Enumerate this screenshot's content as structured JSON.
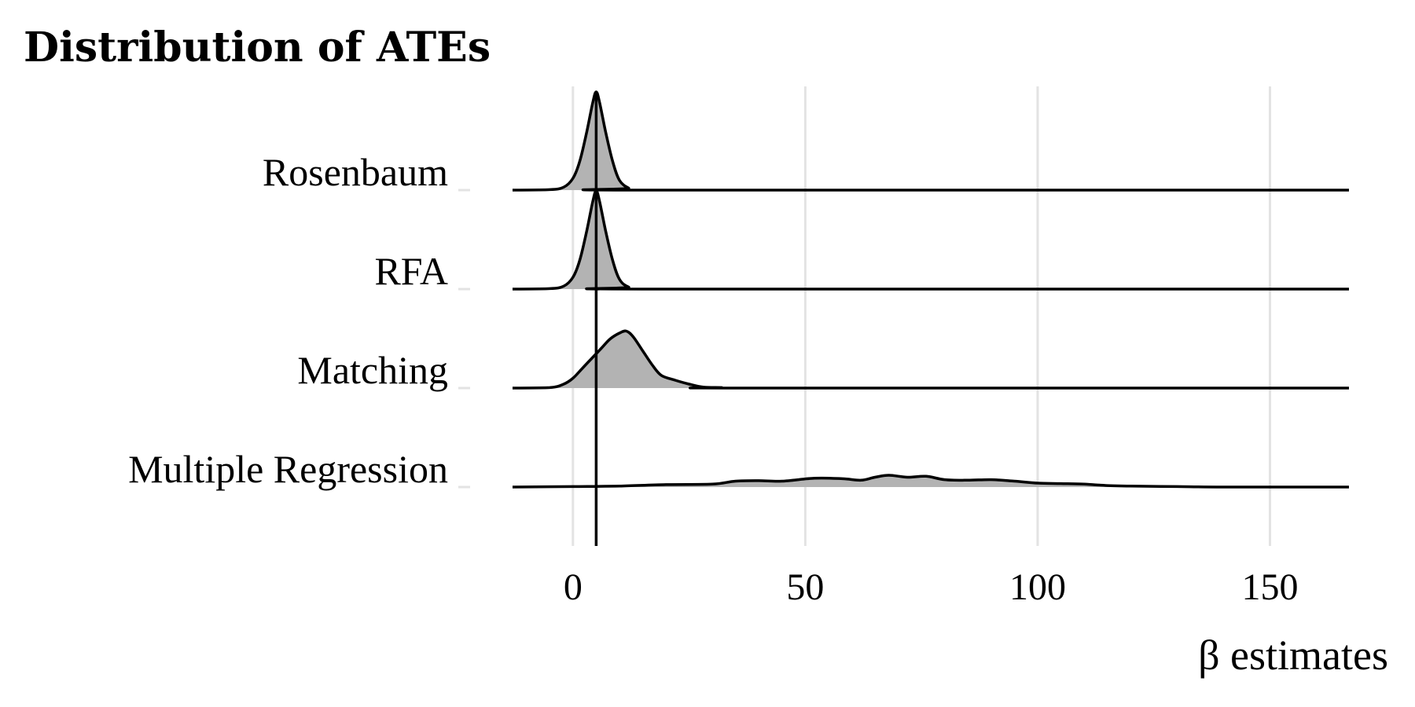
{
  "chart_data": {
    "type": "ridgeline",
    "title": "Distribution of ATEs",
    "xlabel": "β estimates",
    "ylabel": "",
    "xlim": [
      -13,
      167
    ],
    "x_ticks": [
      0,
      50,
      100,
      150
    ],
    "x_tick_labels": [
      "0",
      "50",
      "100",
      "150"
    ],
    "grid": "vertical major gridlines only",
    "legend": "none",
    "reference_line_x": 5,
    "fill_color": "#b3b3b3",
    "line_color": "#000000",
    "series": [
      {
        "name": "Rosenbaum",
        "points": [
          [
            -13,
            0
          ],
          [
            -5,
            0.005
          ],
          [
            -2,
            0.03
          ],
          [
            0,
            0.12
          ],
          [
            1.5,
            0.3
          ],
          [
            3,
            0.6
          ],
          [
            4.3,
            0.9
          ],
          [
            5,
            1.0
          ],
          [
            5.7,
            0.9
          ],
          [
            7,
            0.6
          ],
          [
            8.5,
            0.3
          ],
          [
            10,
            0.1
          ],
          [
            12,
            0.02
          ],
          [
            14,
            0
          ],
          [
            167,
            0
          ]
        ]
      },
      {
        "name": "RFA",
        "points": [
          [
            -13,
            0
          ],
          [
            -5,
            0.005
          ],
          [
            -2,
            0.03
          ],
          [
            0,
            0.12
          ],
          [
            1.5,
            0.3
          ],
          [
            3,
            0.6
          ],
          [
            4.3,
            0.9
          ],
          [
            5,
            1.0
          ],
          [
            5.7,
            0.9
          ],
          [
            7,
            0.6
          ],
          [
            8.5,
            0.3
          ],
          [
            10,
            0.1
          ],
          [
            12,
            0.02
          ],
          [
            15,
            0
          ],
          [
            167,
            0
          ]
        ]
      },
      {
        "name": "Matching",
        "points": [
          [
            -13,
            0
          ],
          [
            -5,
            0.005
          ],
          [
            -2,
            0.04
          ],
          [
            0,
            0.1
          ],
          [
            2,
            0.2
          ],
          [
            4,
            0.3
          ],
          [
            6,
            0.4
          ],
          [
            8,
            0.5
          ],
          [
            10,
            0.56
          ],
          [
            11.5,
            0.58
          ],
          [
            13,
            0.52
          ],
          [
            15,
            0.38
          ],
          [
            17,
            0.24
          ],
          [
            19,
            0.13
          ],
          [
            22,
            0.08
          ],
          [
            25,
            0.04
          ],
          [
            28,
            0.01
          ],
          [
            32,
            0.005
          ],
          [
            36,
            0
          ],
          [
            167,
            0
          ]
        ]
      },
      {
        "name": "Multiple Regression",
        "points": [
          [
            -13,
            0
          ],
          [
            0,
            0.005
          ],
          [
            10,
            0.01
          ],
          [
            20,
            0.025
          ],
          [
            30,
            0.03
          ],
          [
            35,
            0.06
          ],
          [
            40,
            0.065
          ],
          [
            45,
            0.06
          ],
          [
            52,
            0.09
          ],
          [
            58,
            0.085
          ],
          [
            62,
            0.07
          ],
          [
            65,
            0.1
          ],
          [
            68,
            0.12
          ],
          [
            72,
            0.1
          ],
          [
            76,
            0.11
          ],
          [
            80,
            0.075
          ],
          [
            85,
            0.07
          ],
          [
            90,
            0.075
          ],
          [
            95,
            0.06
          ],
          [
            100,
            0.04
          ],
          [
            105,
            0.035
          ],
          [
            110,
            0.03
          ],
          [
            115,
            0.015
          ],
          [
            120,
            0.01
          ],
          [
            130,
            0.005
          ],
          [
            140,
            0
          ],
          [
            167,
            0
          ]
        ]
      }
    ]
  }
}
